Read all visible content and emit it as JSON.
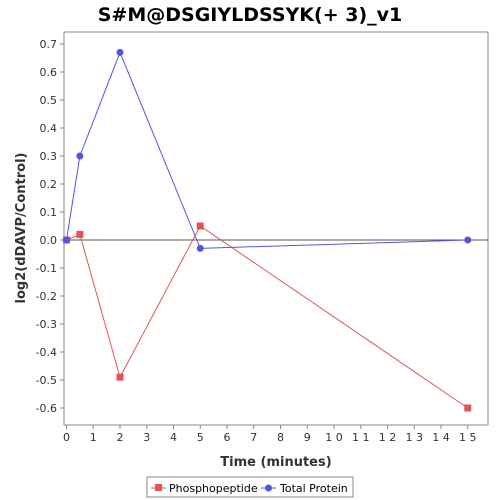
{
  "chart_data": {
    "type": "line",
    "title": "S#M@DSGIYLDSSYK(+ 3)_v1",
    "xlabel": "Time (minutes)",
    "ylabel": "log2(dDAVP/Control)",
    "xlim": [
      0,
      16
    ],
    "ylim": [
      -0.67,
      0.73
    ],
    "x_ticks": [
      0,
      1,
      2,
      3,
      4,
      5,
      6,
      7,
      8,
      9,
      10,
      11,
      12,
      13,
      14,
      15
    ],
    "x_tick_labels": [
      "0",
      "1",
      "2",
      "3",
      "4",
      "5",
      "6",
      "7",
      "8",
      "9",
      "1 0",
      "1 1",
      "1 2",
      "1 3",
      "1 4",
      "1 5"
    ],
    "y_ticks": [
      0.7,
      0.6,
      0.5,
      0.4,
      0.3,
      0.2,
      0.1,
      0.0,
      -0.1,
      -0.2,
      -0.3,
      -0.4,
      -0.5,
      -0.6
    ],
    "y_tick_labels": [
      "0.7",
      "0.6",
      "0.5",
      "0.4",
      "0.3",
      "0.2",
      "0.1",
      "0.0",
      "-0.1",
      "-0.2",
      "-0.3",
      "-0.4",
      "-0.5",
      "-0.6"
    ],
    "grid": false,
    "zero_line": true,
    "legend_position": "bottom",
    "series": [
      {
        "name": "Phosphopeptide",
        "color": "#e05555",
        "marker": "square",
        "x": [
          0,
          0.5,
          2,
          5,
          15
        ],
        "y": [
          0.0,
          0.02,
          -0.49,
          0.05,
          -0.6
        ]
      },
      {
        "name": "Total Protein",
        "color": "#5555e0",
        "marker": "circle",
        "x": [
          0,
          0.5,
          2,
          5,
          15
        ],
        "y": [
          0.0,
          0.3,
          0.67,
          -0.03,
          0.0
        ]
      }
    ]
  }
}
